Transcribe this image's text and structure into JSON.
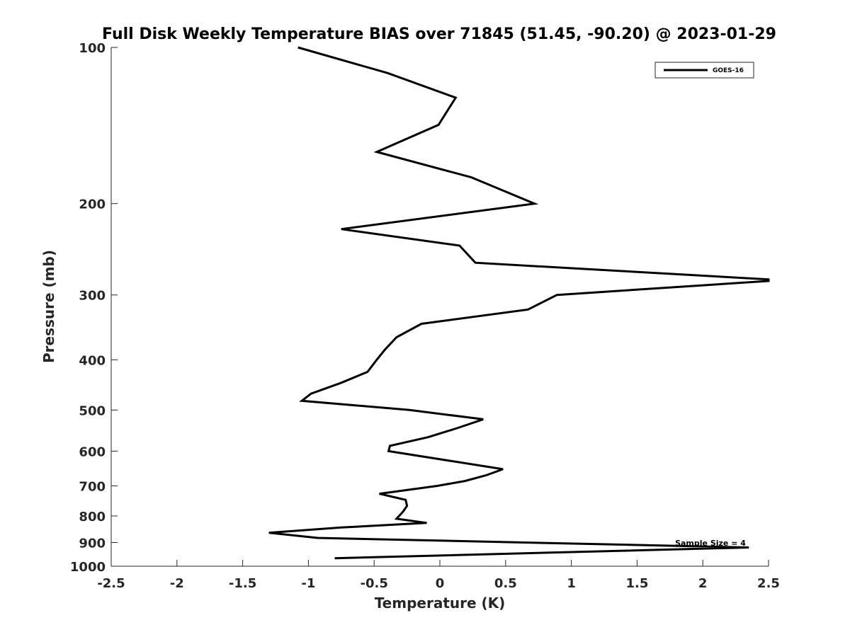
{
  "chart_data": {
    "type": "line",
    "title": "Full Disk Weekly Temperature BIAS over 71845 (51.45, -90.20) @ 2023-01-29",
    "xlabel": "Temperature (K)",
    "ylabel": "Pressure (mb)",
    "xlim": [
      -2.5,
      2.5
    ],
    "ylim": [
      1000,
      100
    ],
    "y_scale": "log",
    "y_reversed": true,
    "grid": false,
    "legend_position": "top-right",
    "x_ticks": [
      "-2.5",
      "-2",
      "-1.5",
      "-1",
      "-0.5",
      "0",
      "0.5",
      "1",
      "1.5",
      "2",
      "2.5"
    ],
    "y_ticks": [
      "100",
      "200",
      "300",
      "400",
      "500",
      "600",
      "700",
      "800",
      "900",
      "1000"
    ],
    "series": [
      {
        "name": "GOES-16",
        "color": "#000000",
        "points": [
          {
            "t": -1.08,
            "p": 100
          },
          {
            "t": -0.4,
            "p": 112
          },
          {
            "t": 0.12,
            "p": 125
          },
          {
            "t": -0.01,
            "p": 141
          },
          {
            "t": -0.48,
            "p": 159
          },
          {
            "t": 0.24,
            "p": 178
          },
          {
            "t": 0.72,
            "p": 200
          },
          {
            "t": -0.75,
            "p": 224
          },
          {
            "t": 0.15,
            "p": 241
          },
          {
            "t": 0.27,
            "p": 260
          },
          {
            "t": 2.5,
            "p": 280
          },
          {
            "t": 2.5,
            "p": 282
          },
          {
            "t": 0.89,
            "p": 300
          },
          {
            "t": 0.67,
            "p": 320
          },
          {
            "t": -0.14,
            "p": 341
          },
          {
            "t": -0.33,
            "p": 362
          },
          {
            "t": -0.42,
            "p": 383
          },
          {
            "t": -0.48,
            "p": 400
          },
          {
            "t": -0.55,
            "p": 422
          },
          {
            "t": -0.75,
            "p": 443
          },
          {
            "t": -0.98,
            "p": 465
          },
          {
            "t": -1.05,
            "p": 480
          },
          {
            "t": -0.23,
            "p": 500
          },
          {
            "t": 0.33,
            "p": 521
          },
          {
            "t": 0.13,
            "p": 542
          },
          {
            "t": -0.09,
            "p": 564
          },
          {
            "t": -0.38,
            "p": 586
          },
          {
            "t": -0.39,
            "p": 600
          },
          {
            "t": 0.48,
            "p": 650
          },
          {
            "t": 0.35,
            "p": 668
          },
          {
            "t": 0.19,
            "p": 685
          },
          {
            "t": -0.02,
            "p": 700
          },
          {
            "t": -0.46,
            "p": 725
          },
          {
            "t": -0.26,
            "p": 745
          },
          {
            "t": -0.25,
            "p": 765
          },
          {
            "t": -0.28,
            "p": 785
          },
          {
            "t": -0.33,
            "p": 810
          },
          {
            "t": -0.1,
            "p": 825
          },
          {
            "t": -0.75,
            "p": 842
          },
          {
            "t": -1.3,
            "p": 862
          },
          {
            "t": -0.93,
            "p": 882
          },
          {
            "t": 2.35,
            "p": 920
          },
          {
            "t": -0.8,
            "p": 965
          }
        ]
      }
    ],
    "annotations": [
      {
        "text": "Sample Size = 4",
        "t": 2.1,
        "p": 905
      }
    ]
  }
}
